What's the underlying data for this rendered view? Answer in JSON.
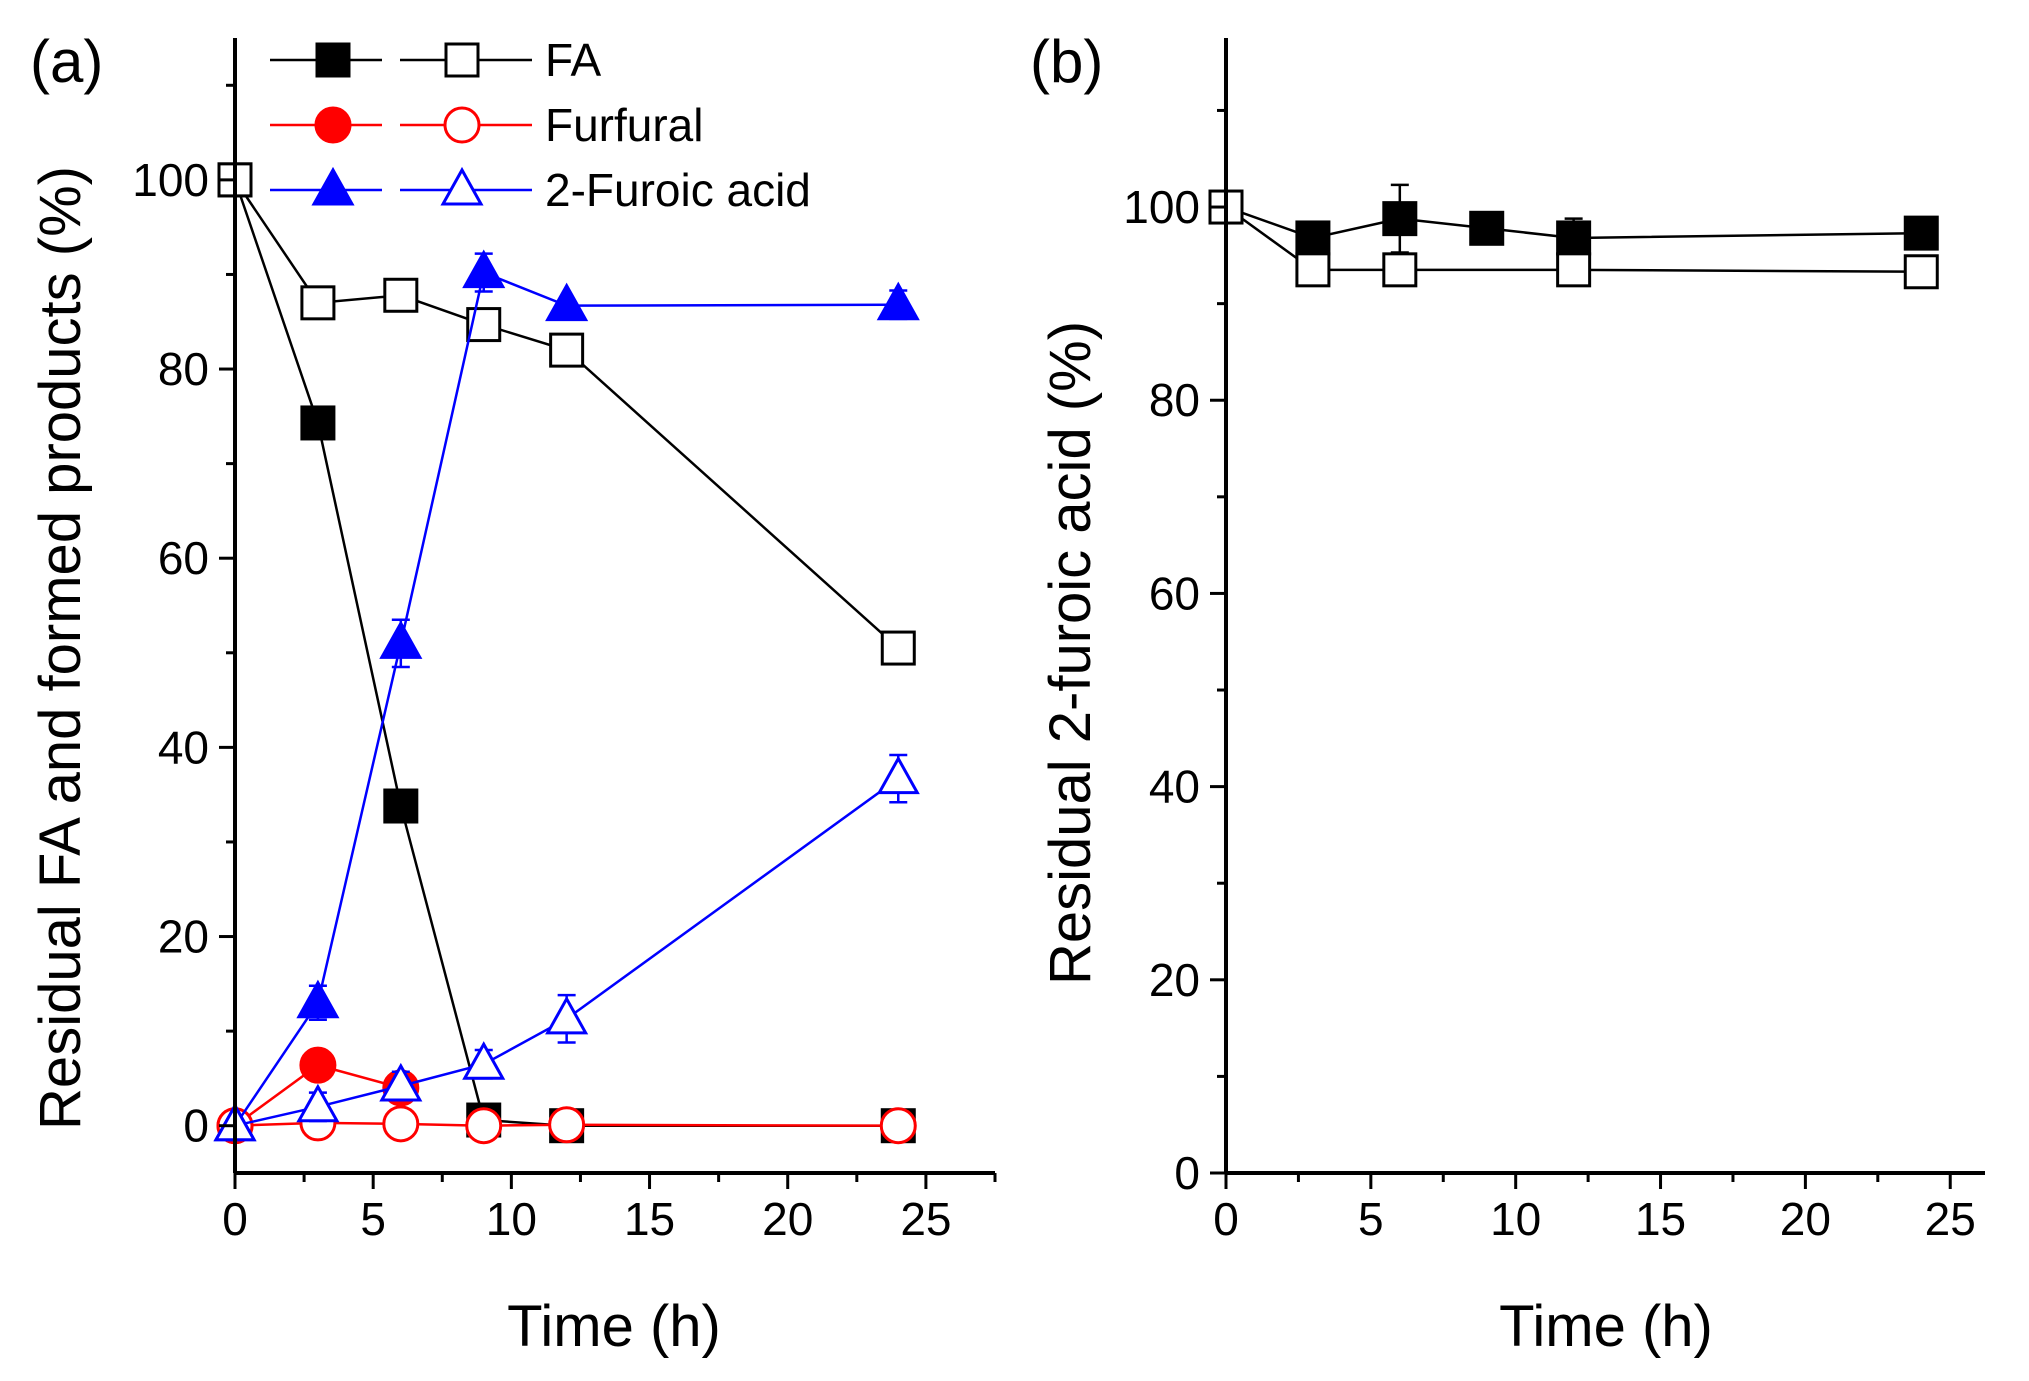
{
  "chart_data": [
    {
      "panel_label": "(a)",
      "type": "line",
      "xlabel": "Time (h)",
      "ylabel": "Residual FA and formed products (%)",
      "xlim": [
        0,
        27.5
      ],
      "ylim": [
        -5,
        115
      ],
      "xticks": [
        0,
        5,
        10,
        15,
        20,
        25
      ],
      "yticks": [
        0,
        20,
        40,
        60,
        80,
        100
      ],
      "legend_position": "top-left",
      "legend": [
        {
          "label": "FA",
          "color": "#000000",
          "filled_marker": "square",
          "open_marker": "square"
        },
        {
          "label": "Furfural",
          "color": "#ff0000",
          "filled_marker": "circle",
          "open_marker": "circle"
        },
        {
          "label": "2-Furoic acid",
          "color": "#0000ff",
          "filled_marker": "triangle",
          "open_marker": "triangle"
        }
      ],
      "series": [
        {
          "name": "FA (filled)",
          "color": "#000000",
          "marker": "square",
          "filled": true,
          "x": [
            0,
            3,
            6,
            9,
            12,
            24
          ],
          "y": [
            100,
            74.3,
            33.8,
            0.6,
            0,
            0
          ],
          "err": [
            0,
            0,
            0,
            0,
            0,
            0
          ]
        },
        {
          "name": "FA (open)",
          "color": "#000000",
          "marker": "square",
          "filled": false,
          "x": [
            0,
            3,
            6,
            9,
            12,
            24
          ],
          "y": [
            100,
            87,
            87.8,
            84.7,
            82,
            50.5
          ],
          "err": [
            0,
            1.2,
            1.3,
            1.0,
            1.3,
            1.2
          ]
        },
        {
          "name": "Furfural (filled)",
          "color": "#ff0000",
          "marker": "circle",
          "filled": true,
          "x": [
            0,
            3,
            6
          ],
          "y": [
            0,
            6.4,
            4.0
          ],
          "err": [
            0,
            0,
            0
          ]
        },
        {
          "name": "Furfural (open)",
          "color": "#ff0000",
          "marker": "circle",
          "filled": false,
          "x": [
            0,
            3,
            6,
            9,
            12,
            24
          ],
          "y": [
            0,
            0.3,
            0.2,
            0,
            0.1,
            0
          ],
          "err": [
            0,
            0.8,
            1.5,
            0,
            0,
            0
          ]
        },
        {
          "name": "2-Furoic acid (filled)",
          "color": "#0000ff",
          "marker": "triangle",
          "filled": true,
          "x": [
            0,
            3,
            6,
            9,
            12,
            24
          ],
          "y": [
            0,
            13,
            51,
            90.2,
            86.7,
            86.8
          ],
          "err": [
            0,
            1.8,
            2.5,
            2.0,
            0,
            1.5
          ]
        },
        {
          "name": "2-Furoic acid (open)",
          "color": "#0000ff",
          "marker": "triangle",
          "filled": false,
          "x": [
            0,
            3,
            6,
            9,
            12,
            24
          ],
          "y": [
            0,
            2.0,
            4.2,
            6.5,
            11.3,
            36.7
          ],
          "err": [
            0,
            1.5,
            1.5,
            1.5,
            2.5,
            2.5
          ]
        }
      ]
    },
    {
      "panel_label": "(b)",
      "type": "line",
      "xlabel": "Time (h)",
      "ylabel": "Residual 2-furoic acid (%)",
      "xlim": [
        0,
        26.2
      ],
      "ylim": [
        0,
        117.5
      ],
      "xticks": [
        0,
        5,
        10,
        15,
        20,
        25
      ],
      "yticks": [
        0,
        20,
        40,
        60,
        80,
        100
      ],
      "series": [
        {
          "name": "filled",
          "color": "#000000",
          "marker": "square",
          "filled": true,
          "x": [
            3,
            6,
            9,
            12,
            24
          ],
          "y": [
            96.8,
            98.8,
            97.8,
            96.8,
            97.3
          ],
          "err": [
            0,
            3.5,
            0,
            2.0,
            0
          ],
          "connect_from": [
            0,
            100
          ]
        },
        {
          "name": "open",
          "color": "#000000",
          "marker": "square",
          "filled": false,
          "x": [
            0,
            3,
            6,
            12,
            24
          ],
          "y": [
            100,
            93.5,
            93.5,
            93.5,
            93.3
          ],
          "err": [
            0,
            1.5,
            0,
            1.5,
            1.5
          ]
        }
      ]
    }
  ]
}
